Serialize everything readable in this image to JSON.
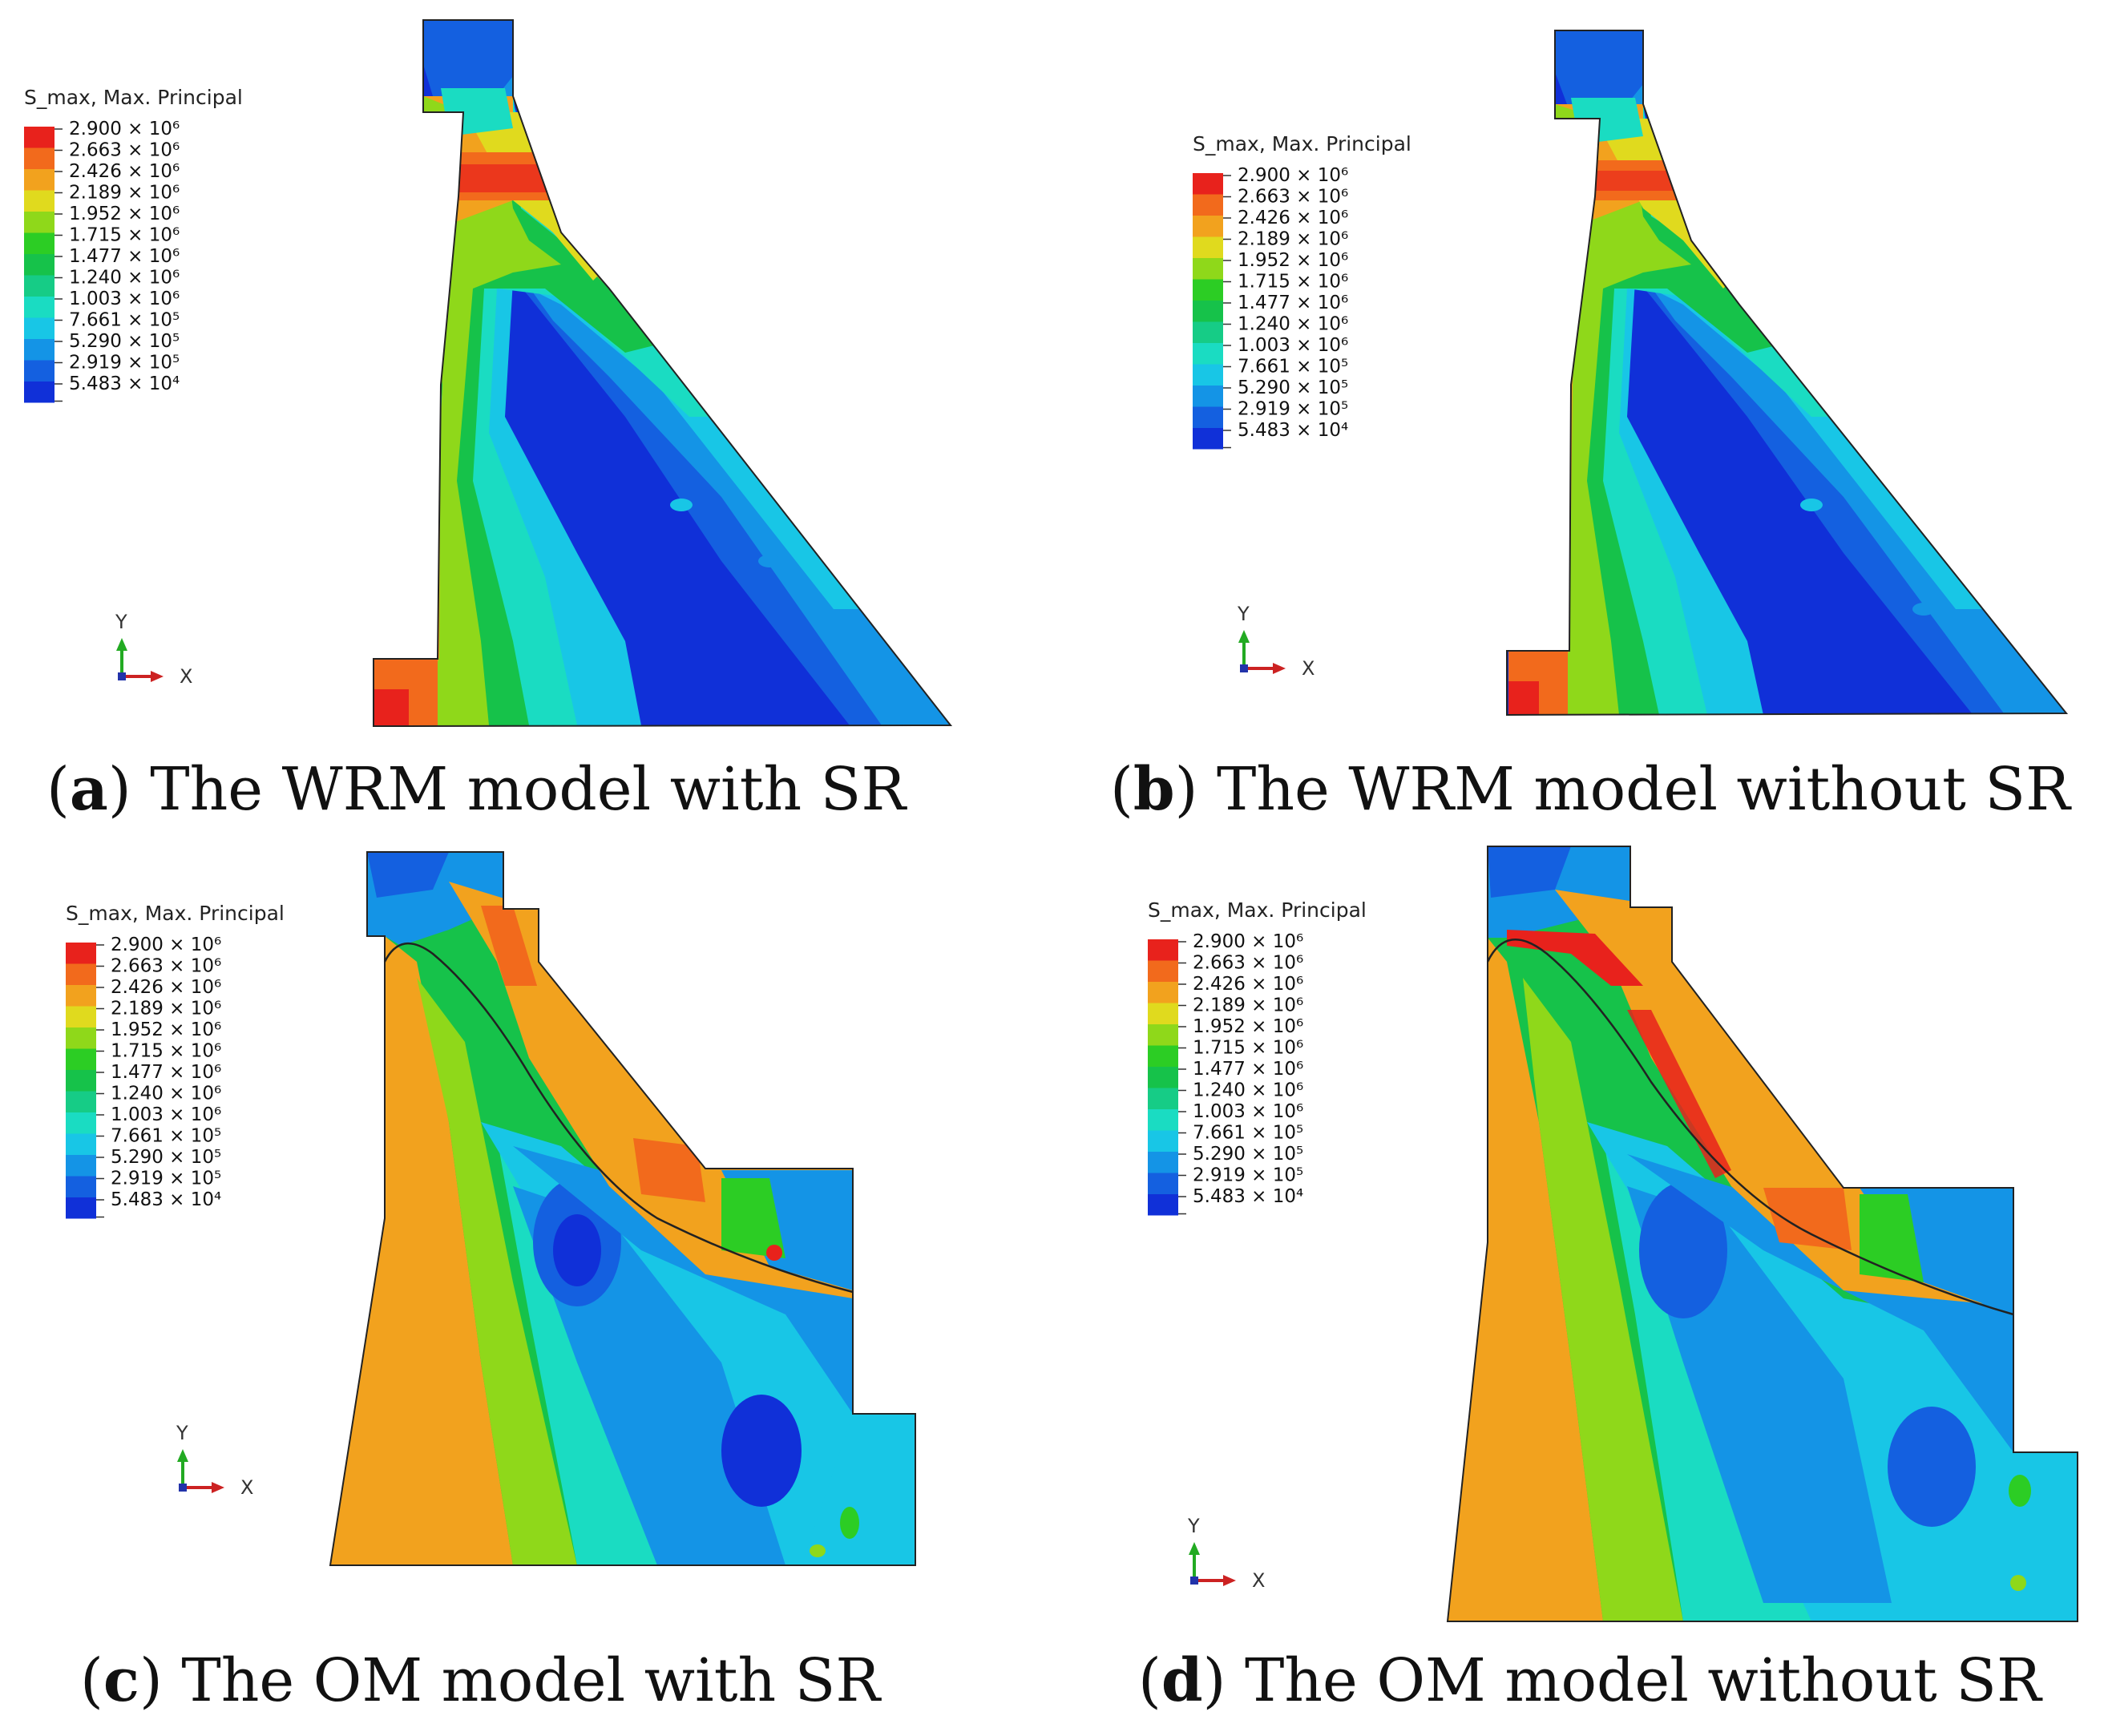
{
  "figure": {
    "legend": {
      "title": "S_max, Max. Principal",
      "entries": [
        {
          "label": "2.900 × 10⁶",
          "color": "#e8221c"
        },
        {
          "label": "2.663 × 10⁶",
          "color": "#f26a1c"
        },
        {
          "label": "2.426 × 10⁶",
          "color": "#f2a21e"
        },
        {
          "label": "2.189 × 10⁶",
          "color": "#e0da1e"
        },
        {
          "label": "1.952 × 10⁶",
          "color": "#8fd81a"
        },
        {
          "label": "1.715 × 10⁶",
          "color": "#2ccd24"
        },
        {
          "label": "1.477 × 10⁶",
          "color": "#16c24a"
        },
        {
          "label": "1.240 × 10⁶",
          "color": "#16cc86"
        },
        {
          "label": "1.003 × 10⁶",
          "color": "#1adcc2"
        },
        {
          "label": "7.661 × 10⁵",
          "color": "#18c6e6"
        },
        {
          "label": "5.290 × 10⁵",
          "color": "#1494e6"
        },
        {
          "label": "2.919 × 10⁵",
          "color": "#1460e0"
        },
        {
          "label": "5.483 × 10⁴",
          "color": "#1030d8"
        }
      ]
    },
    "axis": {
      "y_label": "Y",
      "x_label": "X"
    },
    "panels": [
      {
        "letter": "a",
        "caption": "The WRM model with SR"
      },
      {
        "letter": "b",
        "caption": "The WRM model without SR"
      },
      {
        "letter": "c",
        "caption": "The OM model with SR"
      },
      {
        "letter": "d",
        "caption": "The OM model without SR"
      }
    ]
  }
}
